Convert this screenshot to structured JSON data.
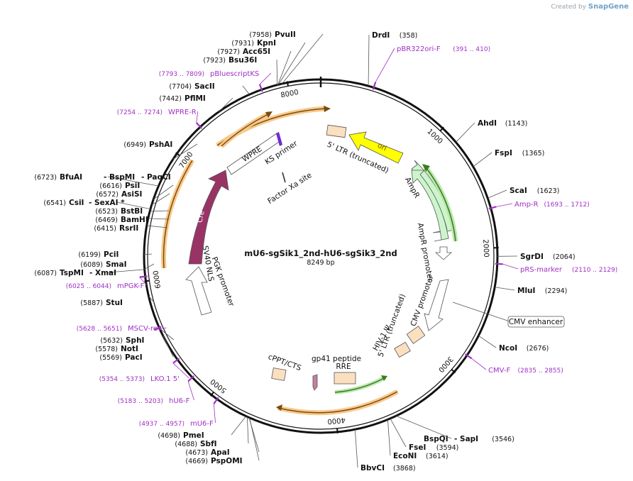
{
  "credit": {
    "prefix": "Created by",
    "brand": "SnapGene"
  },
  "plasmid": {
    "name": "mU6-sgSik1_2nd-hU6-sgSik3_2nd",
    "length": "8249 bp"
  },
  "ticks": [
    "1000",
    "2000",
    "3000",
    "4000",
    "5000",
    "6000",
    "7000",
    "8000"
  ],
  "sites": [
    {
      "name": "PvuII",
      "pos": "(7958)"
    },
    {
      "name": "KpnI",
      "pos": "(7931)"
    },
    {
      "name": "Acc65I",
      "pos": "(7927)"
    },
    {
      "name": "Bsu36I",
      "pos": "(7923)"
    },
    {
      "name": "SacII",
      "pos": "(7704)"
    },
    {
      "name": "PflMI",
      "pos": "(7442)"
    },
    {
      "name": "PshAI",
      "pos": "(6949)"
    },
    {
      "name": "BfuAI",
      "pos": "(6723)"
    },
    {
      "name": "- BspMI",
      "pos": ""
    },
    {
      "name": "- PaqCI",
      "pos": ""
    },
    {
      "name": "PsiI",
      "pos": "(6616)"
    },
    {
      "name": "AsiSI",
      "pos": "(6572)"
    },
    {
      "name": "CsiI",
      "pos": "(6541)"
    },
    {
      "name": "- SexAI *",
      "pos": ""
    },
    {
      "name": "BstBI",
      "pos": "(6523)"
    },
    {
      "name": "BamHI",
      "pos": "(6469)"
    },
    {
      "name": "RsrII",
      "pos": "(6415)"
    },
    {
      "name": "PciI",
      "pos": "(6199)"
    },
    {
      "name": "SmaI",
      "pos": "(6089)"
    },
    {
      "name": "TspMI",
      "pos": "(6087)"
    },
    {
      "name": "- XmaI",
      "pos": ""
    },
    {
      "name": "StuI",
      "pos": "(5887)"
    },
    {
      "name": "SphI",
      "pos": "(5632)"
    },
    {
      "name": "NotI",
      "pos": "(5578)"
    },
    {
      "name": "PacI",
      "pos": "(5569)"
    },
    {
      "name": "PmeI",
      "pos": "(4698)"
    },
    {
      "name": "SbfI",
      "pos": "(4688)"
    },
    {
      "name": "ApaI",
      "pos": "(4673)"
    },
    {
      "name": "PspOMI",
      "pos": "(4669)"
    },
    {
      "name": "BbvCI",
      "pos": "(3868)"
    },
    {
      "name": "EcoNI",
      "pos": "(3614)"
    },
    {
      "name": "FseI",
      "pos": "(3594)"
    },
    {
      "name": "BspQI",
      "pos": ""
    },
    {
      "name": "- SapI",
      "pos": "(3546)"
    },
    {
      "name": "NcoI",
      "pos": "(2676)"
    },
    {
      "name": "MluI",
      "pos": "(2294)"
    },
    {
      "name": "SgrDI",
      "pos": "(2064)"
    },
    {
      "name": "ScaI",
      "pos": "(1623)"
    },
    {
      "name": "FspI",
      "pos": "(1365)"
    },
    {
      "name": "AhdI",
      "pos": "(1143)"
    },
    {
      "name": "DrdI",
      "pos": "(358)"
    }
  ],
  "primers": [
    {
      "name": "pBR322ori-F",
      "range": "(391 .. 410)"
    },
    {
      "name": "Amp-R",
      "range": "(1693 .. 1712)"
    },
    {
      "name": "pRS-marker",
      "range": "(2110 .. 2129)"
    },
    {
      "name": "CMV-F",
      "range": "(2835 .. 2855)"
    },
    {
      "name": "pBluescriptKS",
      "range": "(7793 .. 7809)"
    },
    {
      "name": "WPRE-R",
      "range": "(7254 .. 7274)"
    },
    {
      "name": "mPGK-F",
      "range": "(6025 .. 6044)"
    },
    {
      "name": "MSCV-rev",
      "range": "(5628 .. 5651)"
    },
    {
      "name": "LKO.1 5'",
      "range": "(5354 .. 5373)"
    },
    {
      "name": "hU6-F",
      "range": "(5183 .. 5203)"
    },
    {
      "name": "mU6-F",
      "range": "(4937 .. 4957)"
    }
  ],
  "features": {
    "ltr5_top": "5' LTR (truncated)",
    "ori": "ori",
    "ampr": "AmpR",
    "ampr_promoter": "AmpR promoter",
    "cmv_promoter": "CMV promoter",
    "cmv_enhancer": "CMV enhancer",
    "ltr5_mid": "5' LTR (truncated)",
    "hiv_psi": "HIV-1 Ψ",
    "rre": "RRE",
    "gp41": "gp41 peptide",
    "cppt": "cPPT/CTS",
    "pgk": "PGK promoter",
    "sv40": "SV40 NLS",
    "cre": "Cre",
    "wpre": "WPRE",
    "ks_primer": "KS primer",
    "factor_xa": "Factor Xa site"
  },
  "colors": {
    "backbone": "#111111",
    "primer": "#a02fc4",
    "ori": "#ffff00",
    "ampr": "#ccf5cc",
    "cre": "#993366",
    "orf_highlight": "#f9c98a",
    "ltr": "#fbe0c0",
    "ks": "#6d2bd6"
  }
}
